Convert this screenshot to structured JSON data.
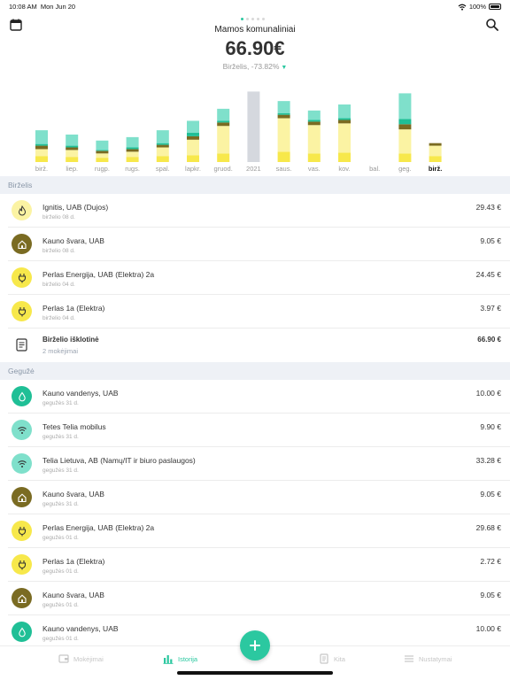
{
  "status_bar": {
    "time": "10:08 AM",
    "date": "Mon Jun 20",
    "battery": "100%"
  },
  "header": {
    "account_name": "Mamos komunaliniai",
    "total": "66.90€",
    "period": "Birželis, -73.82%",
    "page_count": 5,
    "active_page": 0
  },
  "chart_data": {
    "type": "bar",
    "stacked": true,
    "categories": [
      "birž.",
      "liep.",
      "rugp.",
      "rugs.",
      "spal.",
      "lapkr.",
      "gruod.",
      "2021",
      "saus.",
      "vas.",
      "kov.",
      "bal.",
      "geg.",
      "birž."
    ],
    "series": [
      {
        "color": "#f7e84b",
        "values": [
          7,
          6,
          5,
          6,
          7,
          8,
          10,
          0,
          12,
          10,
          11,
          0,
          10,
          7
        ]
      },
      {
        "color": "#fbf3a3",
        "values": [
          8,
          8,
          5,
          6,
          10,
          18,
          32,
          0,
          39,
          33,
          34,
          0,
          28,
          12
        ]
      },
      {
        "color": "#7a6b22",
        "values": [
          4,
          3,
          3,
          3,
          3,
          4,
          4,
          0,
          4,
          4,
          4,
          0,
          6,
          3
        ]
      },
      {
        "color": "#1fbf96",
        "values": [
          2,
          2,
          1,
          2,
          2,
          4,
          2,
          0,
          2,
          2,
          2,
          0,
          6,
          0
        ]
      },
      {
        "color": "#7fe0cb",
        "values": [
          16,
          13,
          11,
          12,
          15,
          14,
          14,
          0,
          14,
          11,
          16,
          0,
          30,
          0
        ]
      }
    ],
    "highlight_category": 13,
    "separator_category": 7
  },
  "sections": [
    {
      "title": "Birželis",
      "items": [
        {
          "name": "Ignitis, UAB (Dujos)",
          "date": "birželio 08 d.",
          "amount": "29.43 €",
          "icon": "flame-icon",
          "color": "#fbf3a3"
        },
        {
          "name": "Kauno švara, UAB",
          "date": "birželio 08 d.",
          "amount": "9.05 €",
          "icon": "house-icon",
          "color": "#7a6b22"
        },
        {
          "name": "Perlas Energija, UAB (Elektra) 2a",
          "date": "birželio 04 d.",
          "amount": "24.45 €",
          "icon": "plug-icon",
          "color": "#f7e84b"
        },
        {
          "name": "Perlas 1a (Elektra)",
          "date": "birželio 04 d.",
          "amount": "3.97 €",
          "icon": "plug-icon",
          "color": "#f7e84b"
        }
      ],
      "summary": {
        "title": "Birželio išklotinė",
        "subtitle": "2 mokėjimai",
        "amount": "66.90 €"
      }
    },
    {
      "title": "Gegužė",
      "items": [
        {
          "name": "Kauno vandenys, UAB",
          "date": "gegužės 31 d.",
          "amount": "10.00 €",
          "icon": "drop-icon",
          "color": "#1fbf96"
        },
        {
          "name": "Tetes Telia mobilus",
          "date": "gegužės 31 d.",
          "amount": "9.90 €",
          "icon": "wifi-icon",
          "color": "#7fe0cb"
        },
        {
          "name": "Telia Lietuva, AB (Namų/IT ir biuro paslaugos)",
          "date": "gegužės 31 d.",
          "amount": "33.28 €",
          "icon": "wifi-icon",
          "color": "#7fe0cb"
        },
        {
          "name": "Kauno švara, UAB",
          "date": "gegužės 31 d.",
          "amount": "9.05 €",
          "icon": "house-icon",
          "color": "#7a6b22"
        },
        {
          "name": "Perlas Energija, UAB (Elektra) 2a",
          "date": "gegužės 01 d.",
          "amount": "29.68 €",
          "icon": "plug-icon",
          "color": "#f7e84b"
        },
        {
          "name": "Perlas 1a (Elektra)",
          "date": "gegužės 01 d.",
          "amount": "2.72 €",
          "icon": "plug-icon",
          "color": "#f7e84b"
        },
        {
          "name": "Kauno švara, UAB",
          "date": "gegužės 01 d.",
          "amount": "9.05 €",
          "icon": "house-icon",
          "color": "#7a6b22"
        },
        {
          "name": "Kauno vandenys, UAB",
          "date": "gegužės 01 d.",
          "amount": "10.00 €",
          "icon": "drop-icon",
          "color": "#1fbf96"
        }
      ]
    }
  ],
  "tabbar": {
    "tabs": [
      {
        "label": "Mokėjimai",
        "icon": "wallet-icon",
        "active": false
      },
      {
        "label": "Istorija",
        "icon": "bar-chart-icon",
        "active": true
      },
      {
        "label": "Kita",
        "icon": "document-icon",
        "active": false
      },
      {
        "label": "Nustatymai",
        "icon": "menu-icon",
        "active": false
      }
    ],
    "add_button": "plus-icon"
  },
  "colors": {
    "accent": "#2bc8a0",
    "section_bg": "#eef1f6",
    "separator_bar": "#d5d8de"
  }
}
